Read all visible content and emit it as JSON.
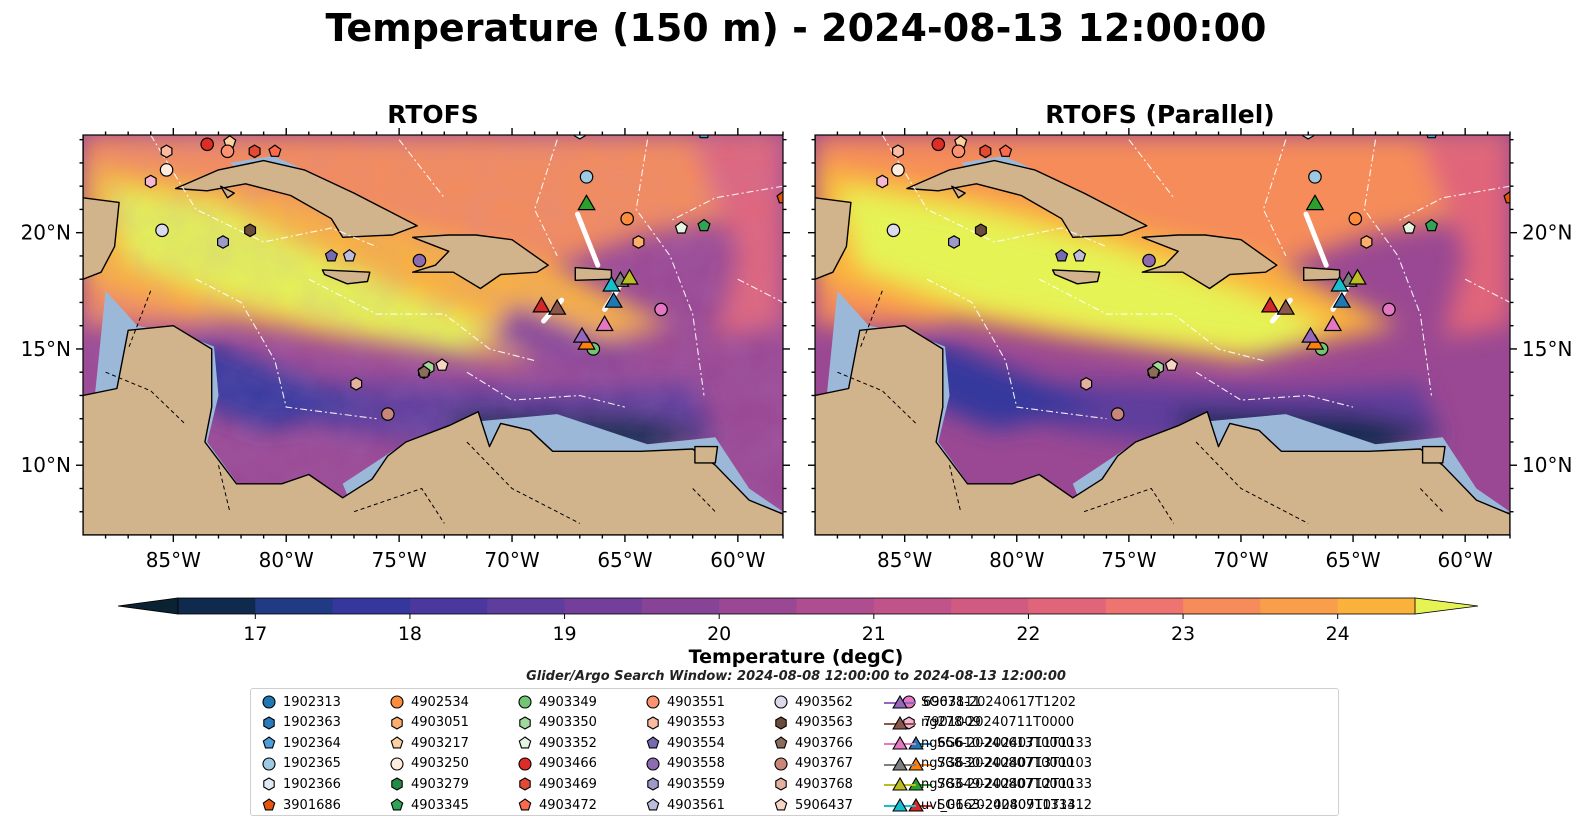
{
  "title": "Temperature (150 m) - 2024-08-13 12:00:00",
  "panels": [
    {
      "title": "RTOFS"
    },
    {
      "title": "RTOFS (Parallel)"
    }
  ],
  "colorbar": {
    "label": "Temperature (degC)",
    "ticks": [
      17,
      18,
      19,
      20,
      21,
      22,
      23,
      24
    ],
    "range": [
      16.5,
      24.5
    ],
    "step": 0.5,
    "colors": [
      "#0b2232",
      "#102a4d",
      "#203a84",
      "#35379d",
      "#4b389f",
      "#5f3d9c",
      "#733f9a",
      "#874497",
      "#9a4893",
      "#ae4d8f",
      "#c0538a",
      "#d15a83",
      "#e0657a",
      "#ed7470",
      "#f58c5a",
      "#f99e4b",
      "#fbb23c",
      "#fbc642",
      "#e5f355"
    ],
    "extend": "both"
  },
  "search_window": "Glider/Argo Search Window: 2024-08-08 12:00:00 to 2024-08-13 12:00:00",
  "chart_data": [
    {
      "type": "heatmap",
      "title": "RTOFS",
      "xlabel": "",
      "ylabel": "",
      "xlim": [
        -89,
        -58
      ],
      "ylim": [
        7,
        24.2
      ],
      "xticks": [
        "85°W",
        "80°W",
        "75°W",
        "70°W",
        "65°W",
        "60°W"
      ],
      "xtick_values": [
        -85,
        -80,
        -75,
        -70,
        -65,
        -60
      ],
      "yticks": [
        "10°N",
        "15°N",
        "20°N"
      ],
      "ytick_values": [
        10,
        15,
        20
      ],
      "ytick_side": "left"
    },
    {
      "type": "heatmap",
      "title": "RTOFS (Parallel)",
      "xlabel": "",
      "ylabel": "",
      "xlim": [
        -89,
        -58
      ],
      "ylim": [
        7,
        24.2
      ],
      "xticks": [
        "85°W",
        "80°W",
        "75°W",
        "70°W",
        "65°W",
        "60°W"
      ],
      "xtick_values": [
        -85,
        -80,
        -75,
        -70,
        -65,
        -60
      ],
      "yticks": [
        "10°N",
        "15°N",
        "20°N"
      ],
      "ytick_values": [
        10,
        15,
        20
      ],
      "ytick_side": "right"
    }
  ],
  "observations": [
    {
      "name": "1902313",
      "marker": "circle",
      "color": "#1f77b4",
      "lon": -66.5,
      "lat": 24.5
    },
    {
      "name": "1902363",
      "marker": "hexagon",
      "color": "#2b7bba",
      "lon": -64.5,
      "lat": 24.5
    },
    {
      "name": "1902364",
      "marker": "pentagon",
      "color": "#4c9fd9",
      "lon": -61.5,
      "lat": 24.3
    },
    {
      "name": "1902365",
      "marker": "circle",
      "color": "#9ecae1",
      "lon": -66.7,
      "lat": 22.4
    },
    {
      "name": "1902366",
      "marker": "hexagon",
      "color": "#deebf7",
      "lon": -67.0,
      "lat": 24.3
    },
    {
      "name": "3901686",
      "marker": "pentagon",
      "color": "#e6550d",
      "lon": -58.0,
      "lat": 21.5
    },
    {
      "name": "4902534",
      "marker": "circle",
      "color": "#fd8d3c",
      "lon": -64.9,
      "lat": 20.6
    },
    {
      "name": "4903051",
      "marker": "hexagon",
      "color": "#fdae6b",
      "lon": -64.4,
      "lat": 19.6
    },
    {
      "name": "4903217",
      "marker": "pentagon",
      "color": "#fdd0a2",
      "lon": -82.5,
      "lat": 23.9
    },
    {
      "name": "4903250",
      "marker": "circle",
      "color": "#feedde",
      "lon": -85.3,
      "lat": 22.7
    },
    {
      "name": "4903279",
      "marker": "hexagon",
      "color": "#238b45",
      "lon": -73.9,
      "lat": 14.0
    },
    {
      "name": "4903345",
      "marker": "pentagon",
      "color": "#31a354",
      "lon": -61.5,
      "lat": 20.3
    },
    {
      "name": "4903349",
      "marker": "circle",
      "color": "#74c476",
      "lon": -66.4,
      "lat": 15.0
    },
    {
      "name": "4903350",
      "marker": "hexagon",
      "color": "#a1d99b",
      "lon": -73.7,
      "lat": 14.2
    },
    {
      "name": "4903352",
      "marker": "pentagon",
      "color": "#e5f5e0",
      "lon": -62.5,
      "lat": 20.2
    },
    {
      "name": "4903466",
      "marker": "circle",
      "color": "#de2d26",
      "lon": -83.5,
      "lat": 23.8
    },
    {
      "name": "4903469",
      "marker": "hexagon",
      "color": "#e34a33",
      "lon": -81.4,
      "lat": 23.5
    },
    {
      "name": "4903472",
      "marker": "pentagon",
      "color": "#fb6a4a",
      "lon": -80.5,
      "lat": 23.5
    },
    {
      "name": "4903551",
      "marker": "circle",
      "color": "#fc9272",
      "lon": -82.6,
      "lat": 23.5
    },
    {
      "name": "4903553",
      "marker": "hexagon",
      "color": "#fcbba1",
      "lon": -85.3,
      "lat": 23.5
    },
    {
      "name": "4903554",
      "marker": "pentagon",
      "color": "#756bb1",
      "lon": -78.0,
      "lat": 19.0
    },
    {
      "name": "4903558",
      "marker": "circle",
      "color": "#8c6bb1",
      "lon": -74.1,
      "lat": 18.8
    },
    {
      "name": "4903559",
      "marker": "hexagon",
      "color": "#9e9ac8",
      "lon": -82.8,
      "lat": 19.6
    },
    {
      "name": "4903561",
      "marker": "pentagon",
      "color": "#bcbddc",
      "lon": -77.2,
      "lat": 19.0
    },
    {
      "name": "4903562",
      "marker": "circle",
      "color": "#dadaeb",
      "lon": -85.5,
      "lat": 20.1
    },
    {
      "name": "4903563",
      "marker": "hexagon",
      "color": "#6b4c3b",
      "lon": -81.6,
      "lat": 20.1
    },
    {
      "name": "4903766",
      "marker": "pentagon",
      "color": "#8c6d5c",
      "lon": -73.9,
      "lat": 14.0
    },
    {
      "name": "4903767",
      "marker": "circle",
      "color": "#c9877a",
      "lon": -75.5,
      "lat": 12.2
    },
    {
      "name": "4903768",
      "marker": "hexagon",
      "color": "#e6b0a0",
      "lon": -76.9,
      "lat": 13.5
    },
    {
      "name": "5906437",
      "marker": "pentagon",
      "color": "#f6d5c5",
      "lon": -73.1,
      "lat": 14.3
    },
    {
      "name": "6903111",
      "marker": "circle",
      "color": "#e377c2",
      "lon": -63.4,
      "lat": 16.7
    },
    {
      "name": "7901009",
      "marker": "hexagon",
      "color": "#f7b6d2",
      "lon": -86.0,
      "lat": 22.2
    },
    {
      "name": "SG610-20240711T1133",
      "marker": "triangle",
      "color": "#1f77b4",
      "lon": -65.5,
      "lat": 17.1
    },
    {
      "name": "SG630-20240713T1103",
      "marker": "triangle",
      "color": "#ff7f0e",
      "lon": -66.7,
      "lat": 15.3
    },
    {
      "name": "SG649-20240712T1133",
      "marker": "triangle",
      "color": "#2ca02c",
      "lon": -66.7,
      "lat": 21.3
    },
    {
      "name": "SG663-20240710T1312",
      "marker": "triangle",
      "color": "#d62728",
      "lon": -68.7,
      "lat": 16.9
    },
    {
      "name": "SG678-20240617T1202",
      "marker": "triangle",
      "color": "#9467bd",
      "lon": -66.9,
      "lat": 15.6
    },
    {
      "name": "ng278-20240711T0000",
      "marker": "triangle",
      "color": "#8c564b",
      "lon": -68.0,
      "lat": 16.8
    },
    {
      "name": "ng656-20240613T0000",
      "marker": "triangle",
      "color": "#e377c2",
      "lon": -65.9,
      "lat": 16.1
    },
    {
      "name": "ng738-20240807T0000",
      "marker": "triangle",
      "color": "#7f7f7f",
      "lon": -65.2,
      "lat": 18.0
    },
    {
      "name": "ng783-20240807T0000",
      "marker": "triangle",
      "color": "#bcbd22",
      "lon": -64.8,
      "lat": 18.1
    },
    {
      "name": "uvi_01-20240809T1334",
      "marker": "triangle",
      "color": "#17becf",
      "lon": -65.6,
      "lat": 17.8
    }
  ]
}
